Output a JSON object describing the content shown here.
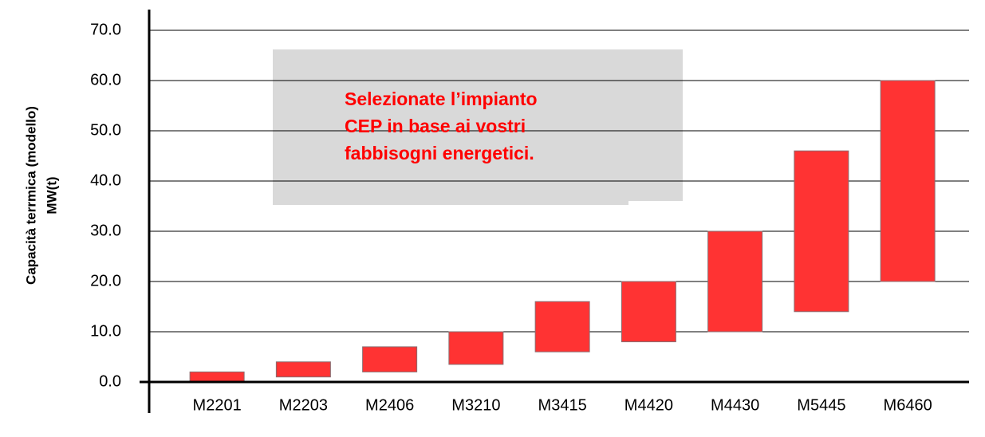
{
  "chart_data": {
    "type": "floating_bar",
    "ylabel": [
      "Capacità terrmica (modello)",
      "MW(t)"
    ],
    "annotation": [
      "Selezionate l’impianto",
      "CEP in base ai vostri",
      "fabbisogni energetici."
    ],
    "categories": [
      "M2201",
      "M2203",
      "M2406",
      "M3210",
      "M3415",
      "M4420",
      "M4430",
      "M5445",
      "M6460"
    ],
    "low": [
      0,
      1,
      2,
      3.5,
      6,
      8,
      10,
      14,
      20
    ],
    "high": [
      2,
      4,
      7,
      10,
      16,
      20,
      30,
      46,
      60
    ],
    "color": "#ff3333",
    "ylim": [
      0,
      70
    ],
    "yticks": [
      {
        "value": 0,
        "label": "0.0"
      },
      {
        "value": 10,
        "label": "10.0"
      },
      {
        "value": 20,
        "label": "20.0"
      },
      {
        "value": 30,
        "label": "30.0"
      },
      {
        "value": 40,
        "label": "40.0"
      },
      {
        "value": 50,
        "label": "50.0"
      },
      {
        "value": 60,
        "label": "60.0"
      },
      {
        "value": 70,
        "label": "70.0"
      }
    ],
    "grid": true
  }
}
